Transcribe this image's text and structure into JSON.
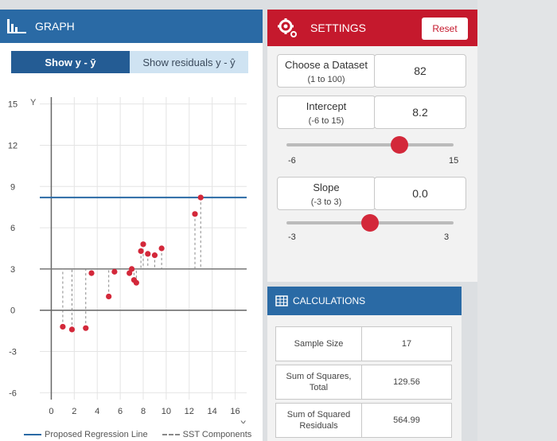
{
  "graph_panel": {
    "title": "GRAPH",
    "tabs": [
      {
        "label": "Show y - ȳ",
        "active": true
      },
      {
        "label": "Show residuals y - ŷ",
        "active": false
      }
    ],
    "legend": {
      "proposed_line": "Proposed Regression Line",
      "sst": "SST Components"
    }
  },
  "chart_data": {
    "type": "scatter",
    "xlabel": "X",
    "ylabel": "Y",
    "xlim": [
      -1,
      17
    ],
    "ylim": [
      -6.5,
      15.5
    ],
    "xticks": [
      0,
      2,
      4,
      6,
      8,
      10,
      12,
      14,
      16
    ],
    "yticks": [
      -6,
      -3,
      0,
      3,
      6,
      9,
      12,
      15
    ],
    "mean_y": 3.0,
    "regression_intercept": 8.2,
    "regression_slope": 0.0,
    "points": [
      {
        "x": 1.0,
        "y": -1.2
      },
      {
        "x": 1.8,
        "y": -1.4
      },
      {
        "x": 3.0,
        "y": -1.3
      },
      {
        "x": 3.5,
        "y": 2.7
      },
      {
        "x": 5.0,
        "y": 1.0
      },
      {
        "x": 5.5,
        "y": 2.8
      },
      {
        "x": 6.8,
        "y": 2.7
      },
      {
        "x": 7.0,
        "y": 3.0
      },
      {
        "x": 7.2,
        "y": 2.2
      },
      {
        "x": 7.4,
        "y": 2.0
      },
      {
        "x": 7.8,
        "y": 4.3
      },
      {
        "x": 8.0,
        "y": 4.8
      },
      {
        "x": 8.4,
        "y": 4.1
      },
      {
        "x": 9.0,
        "y": 4.0
      },
      {
        "x": 9.6,
        "y": 4.5
      },
      {
        "x": 12.5,
        "y": 7.0
      },
      {
        "x": 13.0,
        "y": 8.2
      }
    ],
    "colors": {
      "points": "#d3283a",
      "regression": "#2a6aa5",
      "mean": "#777777"
    }
  },
  "settings_panel": {
    "title": "SETTINGS",
    "reset_label": "Reset",
    "dataset": {
      "label": "Choose a Dataset",
      "range": "(1 to 100)",
      "value": "82"
    },
    "intercept": {
      "label": "Intercept",
      "range": "(-6 to 15)",
      "value": "8.2",
      "min": "-6",
      "max": "15",
      "fraction": 0.676
    },
    "slope": {
      "label": "Slope",
      "range": "(-3 to 3)",
      "value": "0.0",
      "min": "-3",
      "max": "3",
      "fraction": 0.5
    }
  },
  "calculations_panel": {
    "title": "CALCULATIONS",
    "rows": [
      {
        "label": "Sample Size",
        "value": "17"
      },
      {
        "label": "Sum of Squares, Total",
        "value": "129.56"
      },
      {
        "label": "Sum of Squared Residuals",
        "value": "564.99"
      }
    ]
  }
}
